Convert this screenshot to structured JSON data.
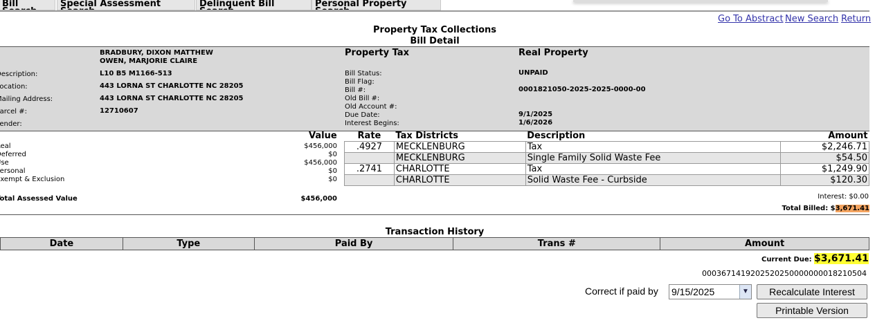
{
  "tabs": [
    "Bill Search",
    "Special Assessment Search",
    "Delinquent Bill Search",
    "Personal Property Search"
  ],
  "links": {
    "abstract": "Go To Abstract",
    "new_search": "New Search",
    "return": "Return"
  },
  "title": "Property Tax Collections",
  "subtitle": "Bill Detail",
  "owner": {
    "name1": "BRADBURY, DIXON MATTHEW",
    "name2": "OWEN, MARJORIE CLAIRE"
  },
  "left_labels": [
    "Description:",
    "Location:",
    "Mailing Address:",
    "Parcel #:",
    "Lender:"
  ],
  "left_values": [
    "L10 B5 M1166-513",
    "443 LORNA ST CHARLOTTE NC 28205",
    "443 LORNA ST CHARLOTTE NC 28205",
    "12710607",
    ""
  ],
  "bill_type": "Property Tax",
  "property_type": "Real Property",
  "bill_labels": [
    "Bill Status:",
    "Bill Flag:",
    "Bill #:",
    "Old Bill #:",
    "Old Account #:",
    "Due Date:",
    "Interest Begins:"
  ],
  "bill_values": {
    "status": "UNPAID",
    "bill_no": "0001821050-2025-2025-0000-00",
    "due_date": "9/1/2025",
    "interest_begins": "1/6/2026"
  },
  "valuation": {
    "header": "Value",
    "rows": [
      {
        "label": "Real",
        "value": "$456,000"
      },
      {
        "label": "Deferred",
        "value": "$0"
      },
      {
        "label": "Use",
        "value": "$456,000"
      },
      {
        "label": "Personal",
        "value": "$0"
      },
      {
        "label": "Exempt & Exclusion",
        "value": "$0"
      }
    ],
    "total_label": "Total Assessed Value",
    "total_value": "$456,000"
  },
  "tax_table": {
    "headers": [
      "Rate",
      "Tax Districts",
      "Description",
      "Amount"
    ],
    "rows": [
      {
        "rate": ".4927",
        "district": "MECKLENBURG",
        "desc": "Tax",
        "amount": "$2,246.71"
      },
      {
        "rate": "",
        "district": "MECKLENBURG",
        "desc": "Single Family Solid Waste Fee",
        "amount": "$54.50"
      },
      {
        "rate": ".2741",
        "district": "CHARLOTTE",
        "desc": "Tax",
        "amount": "$1,249.90"
      },
      {
        "rate": "",
        "district": "CHARLOTTE",
        "desc": "Solid Waste Fee - Curbside",
        "amount": "$120.30"
      }
    ],
    "interest": "Interest: $0.00",
    "total_billed_label": "Total Billed: $",
    "total_billed_value": "3,671.41"
  },
  "history": {
    "title": "Transaction History",
    "headers": [
      "Date",
      "Type",
      "Paid By",
      "Trans #",
      "Amount"
    ]
  },
  "current_due_label": "Current Due:",
  "current_due_value": "$3,671.41",
  "barcode": "0003671419202520250000000018210504",
  "correct_label": "Correct if paid by",
  "paid_by_date": "9/15/2025",
  "buttons": {
    "recalc": "Recalculate Interest",
    "printable": "Printable Version"
  },
  "colors": {
    "link": "#3333aa",
    "highlight_orange": "#f4a460",
    "highlight_yellow": "#ffff33",
    "panel": "#d9d9d9"
  }
}
